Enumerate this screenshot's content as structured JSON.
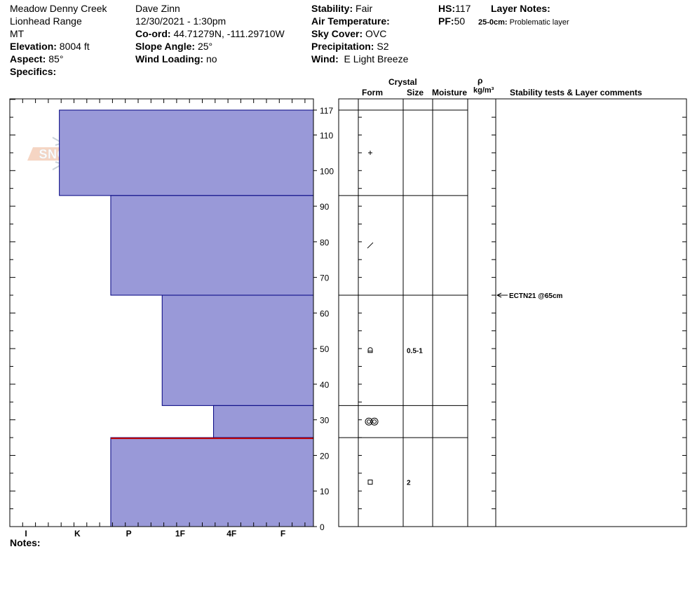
{
  "header": {
    "location": "Meadow Denny Creek",
    "range": "Lionhead Range",
    "state": "MT",
    "elevation_label": "Elevation:",
    "elevation": "8004 ft",
    "aspect_label": "Aspect:",
    "aspect": "85°",
    "specifics_label": "Specifics:",
    "observer": "Dave Zinn",
    "datetime": "12/30/2021 - 1:30pm",
    "coord_label": "Co-ord:",
    "coord": "44.71279N, -111.29710W",
    "slope_label": "Slope Angle:",
    "slope": "25°",
    "wind_loading_label": "Wind Loading:",
    "wind_loading": "no",
    "stability_label": "Stability:",
    "stability": "Fair",
    "air_temp_label": "Air Temperature:",
    "air_temp": "",
    "sky_label": "Sky Cover:",
    "sky": "OVC",
    "precip_label": "Precipitation:",
    "precip": "S2",
    "wind_label": "Wind:",
    "wind": "E Light Breeze",
    "hs_label": "HS:",
    "hs": "117",
    "pf_label": "PF:",
    "pf": "50",
    "layer_notes_label": "Layer Notes:",
    "layer_note_range": "25-0cm:",
    "layer_note_text": "Problematic layer"
  },
  "logo_text": "SNOW PILOT",
  "notes_label": "Notes:",
  "table_headers": {
    "crystal": "Crystal",
    "form": "Form",
    "size": "Size",
    "moisture": "Moisture",
    "rho": "ρ",
    "density_unit": "kg/m³",
    "comments": "Stability tests & Layer comments"
  },
  "chart_data": {
    "type": "bar",
    "title": "",
    "xlabel": "",
    "ylabel": "",
    "y_range": [
      0,
      117
    ],
    "y_ticks": [
      0,
      10,
      20,
      30,
      40,
      50,
      60,
      70,
      80,
      90,
      100,
      110,
      117
    ],
    "hardness_scale": [
      "I",
      "K",
      "P",
      "1F",
      "4F",
      "F"
    ],
    "layers": [
      {
        "top": 117,
        "bottom": 93,
        "hardness_index": 0.65,
        "form": "+",
        "size": "",
        "boundary_color": "#000000"
      },
      {
        "top": 93,
        "bottom": 65,
        "hardness_index": 1.65,
        "form": "/",
        "size": "",
        "boundary_color": "#000000"
      },
      {
        "top": 65,
        "bottom": 34,
        "hardness_index": 2.65,
        "form": "rounded-facet",
        "size": "0.5-1",
        "boundary_color": "#000000"
      },
      {
        "top": 34,
        "bottom": 25,
        "hardness_index": 3.65,
        "form": "melt-forms",
        "size": "",
        "boundary_color": "#000000"
      },
      {
        "top": 25,
        "bottom": 0,
        "hardness_index": 1.65,
        "form": "square",
        "size": "2",
        "boundary_color": "#c00000"
      }
    ],
    "tests": [
      {
        "depth": 65,
        "label": "ECTN21 @65cm"
      }
    ],
    "bar_color": "#9999d8",
    "bar_edge_color": "#000080",
    "problem_color": "#c00000"
  }
}
